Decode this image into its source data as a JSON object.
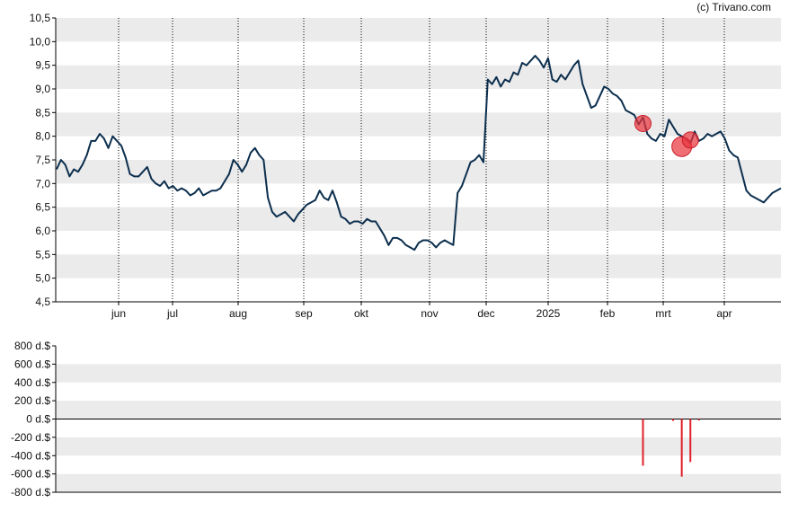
{
  "credit": "(c) Trivano.com",
  "colors": {
    "band": "#ebebeb",
    "price_line": "#0c2f4e",
    "insider_marker": "#e8323a",
    "volume_bar": "#e0202a",
    "axis": "#000000"
  },
  "chart_data": [
    {
      "type": "line",
      "title": "",
      "ylim": [
        4.5,
        10.5
      ],
      "y_ticks": [
        "10,5",
        "10,0",
        "9,5",
        "9,0",
        "8,5",
        "8,0",
        "7,5",
        "7,0",
        "6,5",
        "6,0",
        "5,5",
        "5,0",
        "4,5"
      ],
      "x_ticks": [
        "jun",
        "jul",
        "aug",
        "sep",
        "okt",
        "nov",
        "dec",
        "2025",
        "feb",
        "mrt",
        "apr"
      ],
      "grid": "alternating horizontal bands, dotted vertical lines at month ticks",
      "series": [
        {
          "points": [
            [
              0,
              7.3
            ],
            [
              1,
              7.5
            ],
            [
              2,
              7.4
            ],
            [
              3,
              7.15
            ],
            [
              4,
              7.3
            ],
            [
              5,
              7.25
            ],
            [
              6,
              7.4
            ],
            [
              7,
              7.6
            ],
            [
              8,
              7.9
            ],
            [
              9,
              7.9
            ],
            [
              10,
              8.05
            ],
            [
              11,
              7.95
            ],
            [
              12,
              7.75
            ],
            [
              13,
              8.0
            ],
            [
              14,
              7.9
            ],
            [
              15,
              7.8
            ],
            [
              16,
              7.55
            ],
            [
              17,
              7.2
            ],
            [
              18,
              7.15
            ],
            [
              19,
              7.15
            ],
            [
              20,
              7.25
            ],
            [
              21,
              7.35
            ],
            [
              22,
              7.1
            ],
            [
              23,
              7.0
            ],
            [
              24,
              6.95
            ],
            [
              25,
              7.05
            ],
            [
              26,
              6.9
            ],
            [
              27,
              6.95
            ],
            [
              28,
              6.85
            ],
            [
              29,
              6.9
            ],
            [
              30,
              6.85
            ],
            [
              31,
              6.75
            ],
            [
              32,
              6.8
            ],
            [
              33,
              6.9
            ],
            [
              34,
              6.75
            ],
            [
              35,
              6.8
            ],
            [
              36,
              6.85
            ],
            [
              37,
              6.85
            ],
            [
              38,
              6.9
            ],
            [
              39,
              7.05
            ],
            [
              40,
              7.2
            ],
            [
              41,
              7.5
            ],
            [
              42,
              7.4
            ],
            [
              43,
              7.25
            ],
            [
              44,
              7.4
            ],
            [
              45,
              7.65
            ],
            [
              46,
              7.75
            ],
            [
              47,
              7.6
            ],
            [
              48,
              7.5
            ],
            [
              49,
              6.7
            ],
            [
              50,
              6.4
            ],
            [
              51,
              6.3
            ],
            [
              52,
              6.35
            ],
            [
              53,
              6.4
            ],
            [
              54,
              6.3
            ],
            [
              55,
              6.2
            ],
            [
              56,
              6.35
            ],
            [
              57,
              6.45
            ],
            [
              58,
              6.55
            ],
            [
              59,
              6.6
            ],
            [
              60,
              6.65
            ],
            [
              61,
              6.85
            ],
            [
              62,
              6.7
            ],
            [
              63,
              6.65
            ],
            [
              64,
              6.85
            ],
            [
              65,
              6.6
            ],
            [
              66,
              6.3
            ],
            [
              67,
              6.25
            ],
            [
              68,
              6.15
            ],
            [
              69,
              6.2
            ],
            [
              70,
              6.2
            ],
            [
              71,
              6.15
            ],
            [
              72,
              6.25
            ],
            [
              73,
              6.2
            ],
            [
              74,
              6.2
            ],
            [
              75,
              6.05
            ],
            [
              76,
              5.9
            ],
            [
              77,
              5.7
            ],
            [
              78,
              5.85
            ],
            [
              79,
              5.85
            ],
            [
              80,
              5.8
            ],
            [
              81,
              5.7
            ],
            [
              82,
              5.65
            ],
            [
              83,
              5.6
            ],
            [
              84,
              5.75
            ],
            [
              85,
              5.8
            ],
            [
              86,
              5.8
            ],
            [
              87,
              5.75
            ],
            [
              88,
              5.65
            ],
            [
              89,
              5.75
            ],
            [
              90,
              5.8
            ],
            [
              91,
              5.75
            ],
            [
              92,
              5.7
            ],
            [
              93,
              6.8
            ],
            [
              94,
              6.95
            ],
            [
              95,
              7.2
            ],
            [
              96,
              7.45
            ],
            [
              97,
              7.5
            ],
            [
              98,
              7.6
            ],
            [
              99,
              7.45
            ],
            [
              100,
              9.2
            ],
            [
              101,
              9.1
            ],
            [
              102,
              9.25
            ],
            [
              103,
              9.05
            ],
            [
              104,
              9.2
            ],
            [
              105,
              9.15
            ],
            [
              106,
              9.35
            ],
            [
              107,
              9.3
            ],
            [
              108,
              9.55
            ],
            [
              109,
              9.5
            ],
            [
              110,
              9.6
            ],
            [
              111,
              9.7
            ],
            [
              112,
              9.6
            ],
            [
              113,
              9.45
            ],
            [
              114,
              9.65
            ],
            [
              115,
              9.2
            ],
            [
              116,
              9.15
            ],
            [
              117,
              9.3
            ],
            [
              118,
              9.2
            ],
            [
              119,
              9.35
            ],
            [
              120,
              9.5
            ],
            [
              121,
              9.6
            ],
            [
              122,
              9.1
            ],
            [
              123,
              8.85
            ],
            [
              124,
              8.6
            ],
            [
              125,
              8.65
            ],
            [
              126,
              8.85
            ],
            [
              127,
              9.05
            ],
            [
              128,
              9.0
            ],
            [
              129,
              8.9
            ],
            [
              130,
              8.85
            ],
            [
              131,
              8.75
            ],
            [
              132,
              8.55
            ],
            [
              133,
              8.5
            ],
            [
              134,
              8.45
            ],
            [
              135,
              8.25
            ],
            [
              136,
              8.4
            ],
            [
              137,
              8.05
            ],
            [
              138,
              7.95
            ],
            [
              139,
              7.9
            ],
            [
              140,
              8.05
            ],
            [
              141,
              8.0
            ],
            [
              142,
              8.35
            ],
            [
              143,
              8.2
            ],
            [
              144,
              8.05
            ],
            [
              145,
              8.0
            ],
            [
              146,
              7.95
            ],
            [
              147,
              7.85
            ],
            [
              148,
              8.1
            ],
            [
              149,
              7.9
            ],
            [
              150,
              7.95
            ],
            [
              151,
              8.05
            ],
            [
              152,
              8.0
            ],
            [
              153,
              8.05
            ],
            [
              154,
              8.1
            ],
            [
              155,
              7.95
            ],
            [
              156,
              7.7
            ],
            [
              157,
              7.6
            ],
            [
              158,
              7.55
            ],
            [
              159,
              7.2
            ],
            [
              160,
              6.85
            ],
            [
              161,
              6.75
            ],
            [
              162,
              6.7
            ],
            [
              163,
              6.65
            ],
            [
              164,
              6.6
            ],
            [
              165,
              6.7
            ],
            [
              166,
              6.8
            ],
            [
              167,
              6.85
            ],
            [
              168,
              6.9
            ]
          ]
        }
      ],
      "insider_markers": [
        {
          "x": 136,
          "y": 8.27
        },
        {
          "x": 145,
          "y": 7.78
        },
        {
          "x": 147,
          "y": 7.92
        }
      ]
    },
    {
      "type": "bar",
      "title": "",
      "ylim": [
        -800,
        800
      ],
      "y_ticks": [
        "800 d.$",
        "600 d.$",
        "400 d.$",
        "200 d.$",
        "0 d.$",
        "-200 d.$",
        "-400 d.$",
        "-600 d.$",
        "-800 d.$"
      ],
      "bars": [
        {
          "x": 136,
          "value": -510
        },
        {
          "x": 143,
          "value": -20
        },
        {
          "x": 145,
          "value": -630
        },
        {
          "x": 147,
          "value": -470
        },
        {
          "x": 149,
          "value": -15
        }
      ]
    }
  ]
}
